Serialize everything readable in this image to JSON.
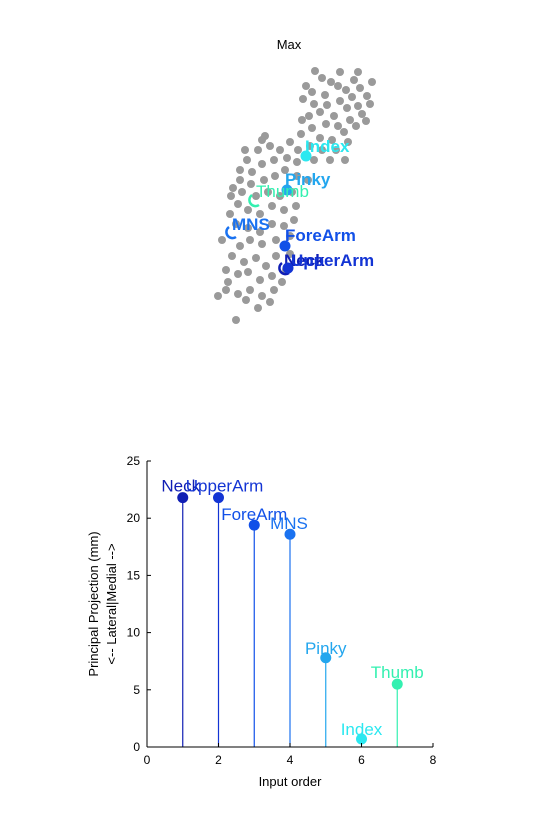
{
  "colors": {
    "Neck": "#101eb4",
    "UpperArm": "#1334d4",
    "ForeArm": "#1150e8",
    "MNS": "#1a72f0",
    "Pinky": "#23a6ee",
    "Index": "#2be8f0",
    "Thumb": "#33f0b0",
    "cloud": "#9a9a9a"
  },
  "chart_data": [
    {
      "type": "scatter",
      "title": "Max",
      "grid": false,
      "labels": [
        {
          "name": "Index",
          "color": "#2be8f0"
        },
        {
          "name": "Pinky",
          "color": "#23a6ee"
        },
        {
          "name": "Thumb",
          "color": "#33f0b0"
        },
        {
          "name": "MNS",
          "color": "#1a72f0"
        },
        {
          "name": "ForeArm",
          "color": "#1150e8"
        },
        {
          "name": "Neck",
          "color": "#101eb4"
        },
        {
          "name": "UpperArm",
          "color": "#1334d4"
        }
      ]
    },
    {
      "type": "bar",
      "subtype": "stem",
      "title": "",
      "xlabel": "Input order",
      "ylabel_lines": [
        "Principal Projection (mm)",
        "<-- Lateral|Medial -->"
      ],
      "xlim": [
        0,
        8
      ],
      "ylim": [
        0,
        25
      ],
      "xticks": [
        0,
        2,
        4,
        6,
        8
      ],
      "yticks": [
        0,
        5,
        10,
        15,
        20,
        25
      ],
      "grid": false,
      "points": [
        {
          "name": "Neck",
          "x": 1,
          "y": 21.8
        },
        {
          "name": "UpperArm",
          "x": 2,
          "y": 21.8
        },
        {
          "name": "ForeArm",
          "x": 3,
          "y": 19.4
        },
        {
          "name": "MNS",
          "x": 4,
          "y": 18.6
        },
        {
          "name": "Pinky",
          "x": 5,
          "y": 7.8
        },
        {
          "name": "Index",
          "x": 6,
          "y": 0.7
        },
        {
          "name": "Thumb",
          "x": 7,
          "y": 5.5
        }
      ]
    }
  ]
}
